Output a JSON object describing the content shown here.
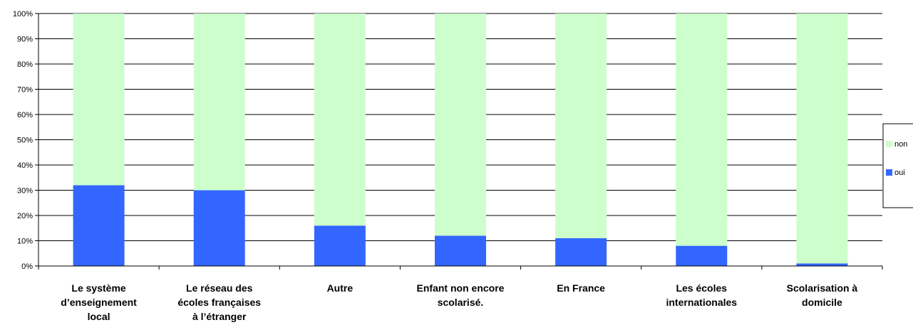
{
  "chart_data": {
    "type": "bar",
    "stacked": true,
    "categories": [
      "Le système d’enseignement local",
      "Le réseau des écoles françaises à l’étranger",
      "Autre",
      "Enfant non encore scolarisé.",
      "En France",
      "Les écoles internationales",
      "Scolarisation à domicile"
    ],
    "series": [
      {
        "name": "oui",
        "color": "#3366ff",
        "values": [
          32,
          30,
          16,
          12,
          11,
          8,
          1
        ]
      },
      {
        "name": "non",
        "color": "#ccffcc",
        "values": [
          68,
          70,
          84,
          88,
          89,
          92,
          99
        ]
      }
    ],
    "ylim": [
      0,
      100
    ],
    "yticks": [
      "0%",
      "10%",
      "20%",
      "30%",
      "40%",
      "50%",
      "60%",
      "70%",
      "80%",
      "90%",
      "100%"
    ],
    "grid": true,
    "legend_position": "right",
    "legend_order": [
      "non",
      "oui"
    ]
  }
}
